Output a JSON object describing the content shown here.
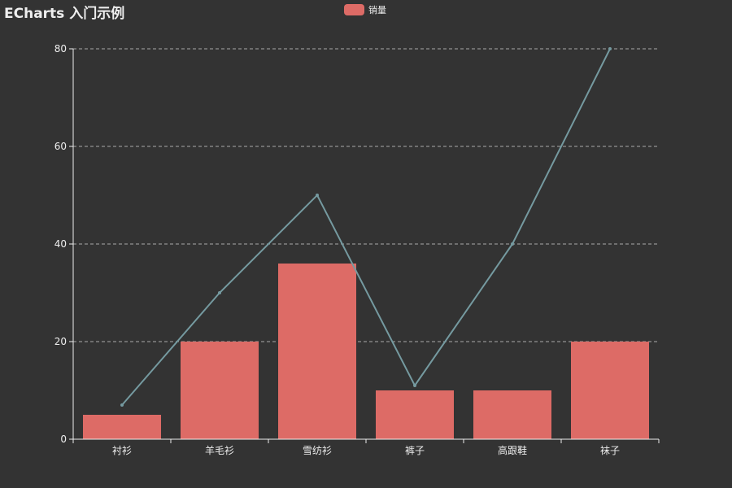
{
  "title": "ECharts 入门示例",
  "legend": {
    "label": "销量",
    "color": "#dd6b66"
  },
  "colors": {
    "background": "#333333",
    "bar": "#dd6b66",
    "line": "#759aa0",
    "text": "#eeeeee",
    "axis": "#eeeeee",
    "grid": "#aaaaaa"
  },
  "chart_data": {
    "type": "bar",
    "categories": [
      "衬衫",
      "羊毛衫",
      "雪纺衫",
      "裤子",
      "高跟鞋",
      "袜子"
    ],
    "series": [
      {
        "name": "销量",
        "type": "bar",
        "values": [
          5,
          20,
          36,
          10,
          10,
          20
        ]
      },
      {
        "type": "line",
        "values": [
          7,
          30,
          50,
          11,
          40,
          80
        ]
      }
    ],
    "title": "ECharts 入门示例",
    "xlabel": "",
    "ylabel": "",
    "ylim": [
      0,
      80
    ],
    "yticks": [
      "0",
      "20",
      "40",
      "60",
      "80"
    ],
    "grid": true,
    "legend_position": "top-center"
  }
}
